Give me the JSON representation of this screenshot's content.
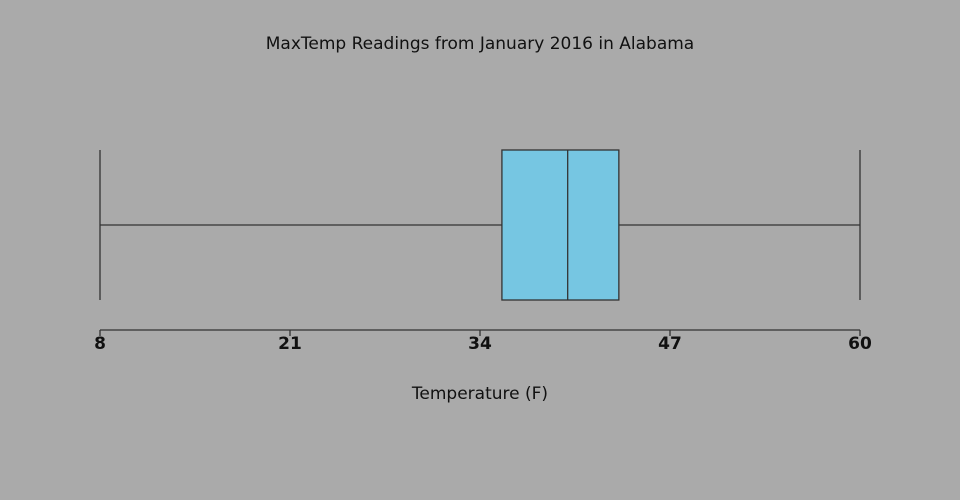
{
  "chart_data": {
    "type": "box",
    "title": "MaxTemp Readings from January 2016 in Alabama",
    "xlabel": "Temperature (F)",
    "min": 8,
    "q1": 35.5,
    "median": 40,
    "q3": 43.5,
    "max": 60,
    "color": "#76c6e2",
    "xlim": [
      8,
      60
    ],
    "xticks": [
      8,
      21,
      34,
      47,
      60
    ]
  }
}
